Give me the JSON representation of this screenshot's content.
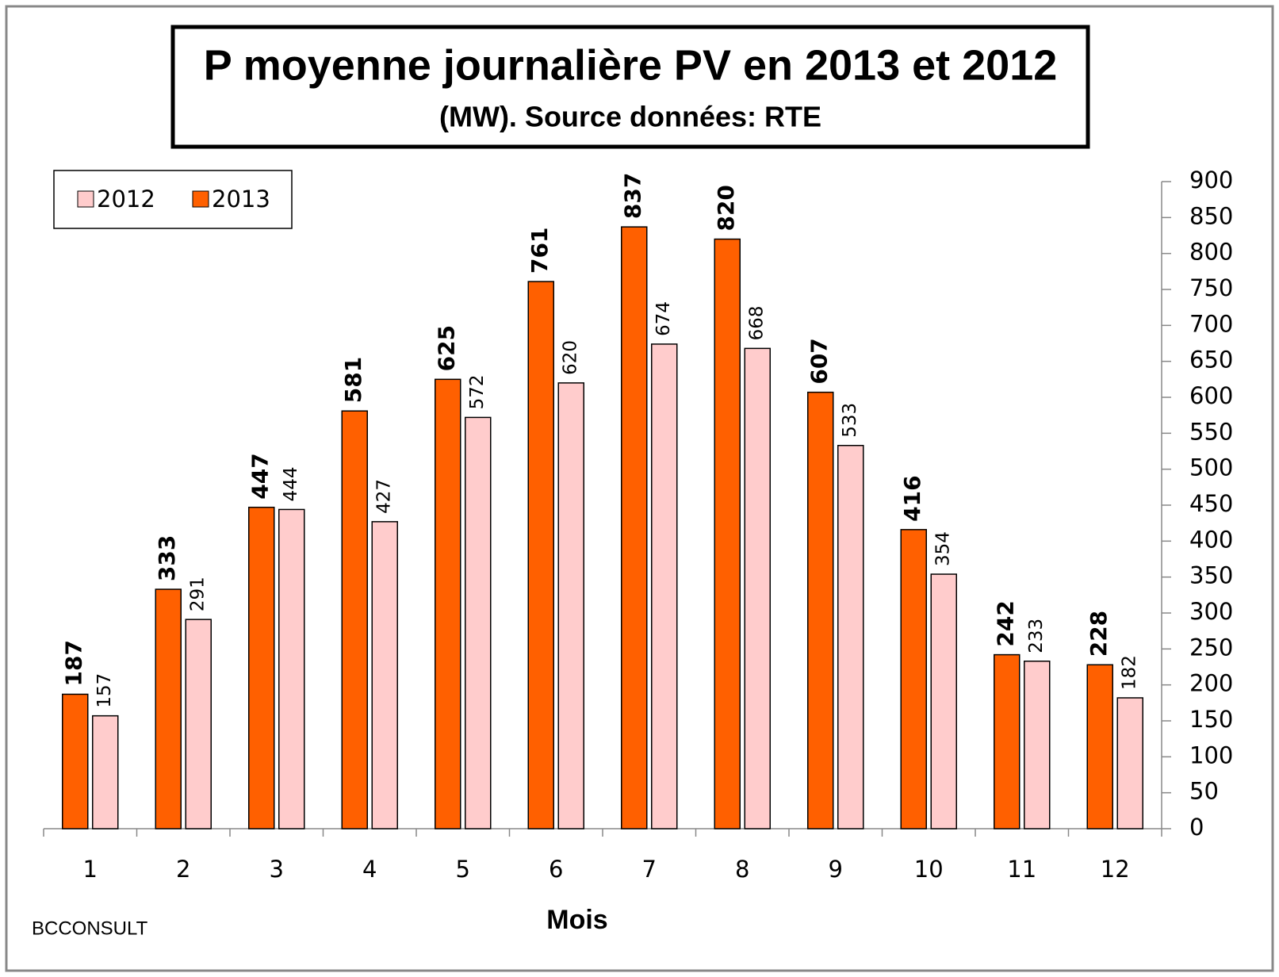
{
  "chart_data": {
    "type": "bar",
    "title": "P moyenne journalière PV en 2013 et 2012",
    "subtitle": "(MW). Source données: RTE",
    "x_label": "Mois",
    "annotation": "BCCONSULT",
    "categories": [
      "1",
      "2",
      "3",
      "4",
      "5",
      "6",
      "7",
      "8",
      "9",
      "10",
      "11",
      "12"
    ],
    "series": [
      {
        "name": "2012",
        "color": "#ffcccc",
        "values": [
          157,
          291,
          444,
          427,
          572,
          620,
          674,
          668,
          533,
          354,
          233,
          182
        ]
      },
      {
        "name": "2013",
        "color": "#ff6000",
        "values": [
          187,
          333,
          447,
          581,
          625,
          761,
          837,
          820,
          607,
          416,
          242,
          228
        ]
      }
    ],
    "ylim": [
      0,
      900
    ],
    "yticks": [
      0,
      50,
      100,
      150,
      200,
      250,
      300,
      350,
      400,
      450,
      500,
      550,
      600,
      650,
      700,
      750,
      800,
      850,
      900
    ],
    "legend": "top-left"
  }
}
